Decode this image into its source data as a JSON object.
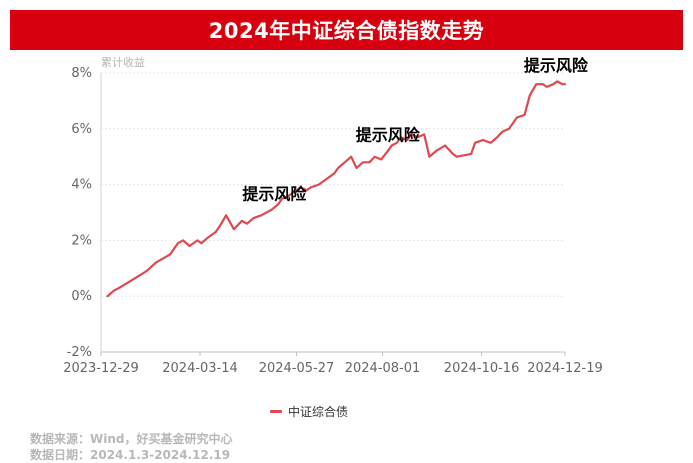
{
  "title": "2024年中证综合债指数走势",
  "source_line": "数据来源：Wind，好买基金研究中心",
  "date_line": "数据日期：2024.1.3-2024.12.19",
  "chart_data": {
    "type": "line",
    "ylabel": "累计收益",
    "ylim": [
      -2,
      8
    ],
    "y_ticks": [
      "-2%",
      "0%",
      "2%",
      "4%",
      "6%",
      "8%"
    ],
    "x_ticks": [
      "2023-12-29",
      "2024-03-14",
      "2024-05-27",
      "2024-08-01",
      "2024-10-16",
      "2024-12-19"
    ],
    "grid": true,
    "legend_position": "bottom",
    "series": [
      {
        "name": "中证综合债",
        "color": "#e0474e",
        "x": [
          "2024-01-03",
          "2024-01-08",
          "2024-01-12",
          "2024-01-19",
          "2024-01-26",
          "2024-02-02",
          "2024-02-09",
          "2024-02-20",
          "2024-02-26",
          "2024-03-01",
          "2024-03-06",
          "2024-03-12",
          "2024-03-15",
          "2024-03-20",
          "2024-03-26",
          "2024-03-29",
          "2024-04-03",
          "2024-04-09",
          "2024-04-15",
          "2024-04-19",
          "2024-04-24",
          "2024-04-30",
          "2024-05-08",
          "2024-05-13",
          "2024-05-16",
          "2024-05-21",
          "2024-05-24",
          "2024-05-30",
          "2024-06-04",
          "2024-06-07",
          "2024-06-13",
          "2024-06-19",
          "2024-06-25",
          "2024-06-28",
          "2024-07-03",
          "2024-07-08",
          "2024-07-12",
          "2024-07-17",
          "2024-07-22",
          "2024-07-26",
          "2024-07-31",
          "2024-08-05",
          "2024-08-08",
          "2024-08-12",
          "2024-08-15",
          "2024-08-20",
          "2024-08-23",
          "2024-08-28",
          "2024-09-02",
          "2024-09-06",
          "2024-09-11",
          "2024-09-18",
          "2024-09-24",
          "2024-09-27",
          "2024-10-08",
          "2024-10-11",
          "2024-10-17",
          "2024-10-23",
          "2024-10-28",
          "2024-11-01",
          "2024-11-06",
          "2024-11-12",
          "2024-11-18",
          "2024-11-22",
          "2024-11-27",
          "2024-12-02",
          "2024-12-05",
          "2024-12-10",
          "2024-12-13",
          "2024-12-17",
          "2024-12-19"
        ],
        "values": [
          0.0,
          0.2,
          0.3,
          0.5,
          0.7,
          0.9,
          1.2,
          1.5,
          1.9,
          2.0,
          1.8,
          2.0,
          1.9,
          2.1,
          2.3,
          2.5,
          2.9,
          2.4,
          2.7,
          2.6,
          2.8,
          2.9,
          3.1,
          3.3,
          3.5,
          3.6,
          3.7,
          3.9,
          3.8,
          3.9,
          4.0,
          4.2,
          4.4,
          4.6,
          4.8,
          5.0,
          4.6,
          4.8,
          4.8,
          5.0,
          4.9,
          5.2,
          5.4,
          5.5,
          5.7,
          5.6,
          5.8,
          5.7,
          5.8,
          5.0,
          5.2,
          5.4,
          5.1,
          5.0,
          5.1,
          5.5,
          5.6,
          5.5,
          5.7,
          5.9,
          6.0,
          6.4,
          6.5,
          7.2,
          7.6,
          7.6,
          7.5,
          7.6,
          7.7,
          7.6,
          7.6
        ]
      }
    ],
    "annotations": [
      {
        "text": "提示风险",
        "x": "2024-05-10",
        "y": 2.9
      },
      {
        "text": "提示风险",
        "x": "2024-08-05",
        "y": 5.0
      },
      {
        "text": "提示风险",
        "x": "2024-12-12",
        "y": 7.5
      }
    ]
  }
}
